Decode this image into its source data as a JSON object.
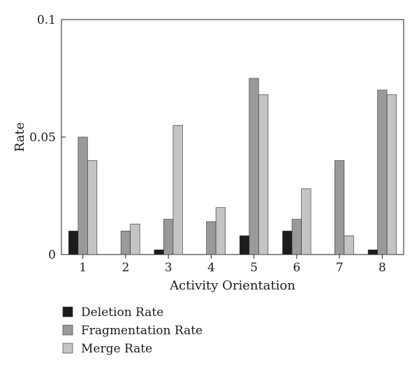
{
  "chart_data": {
    "type": "bar",
    "xlabel": "Activity Orientation",
    "ylabel": "Rate",
    "ylim": [
      0,
      0.1
    ],
    "yticks": [
      {
        "value": 0,
        "label": "0"
      },
      {
        "value": 0.05,
        "label": "0.05"
      },
      {
        "value": 0.1,
        "label": "0.1"
      }
    ],
    "categories": [
      "1",
      "2",
      "3",
      "4",
      "5",
      "6",
      "7",
      "8"
    ],
    "series": [
      {
        "name": "Deletion Rate",
        "color": "#1c1c1c",
        "values": [
          0.01,
          0,
          0.002,
          0,
          0.008,
          0.01,
          0,
          0.002
        ]
      },
      {
        "name": "Fragmentation Rate",
        "color": "#9a9a9a",
        "values": [
          0.05,
          0.01,
          0.015,
          0.014,
          0.075,
          0.015,
          0.04,
          0.07
        ]
      },
      {
        "name": "Merge Rate",
        "color": "#c4c4c4",
        "values": [
          0.04,
          0.013,
          0.055,
          0.02,
          0.068,
          0.028,
          0.008,
          0.068
        ]
      }
    ],
    "grid": false,
    "legend_position": "bottom-left"
  }
}
